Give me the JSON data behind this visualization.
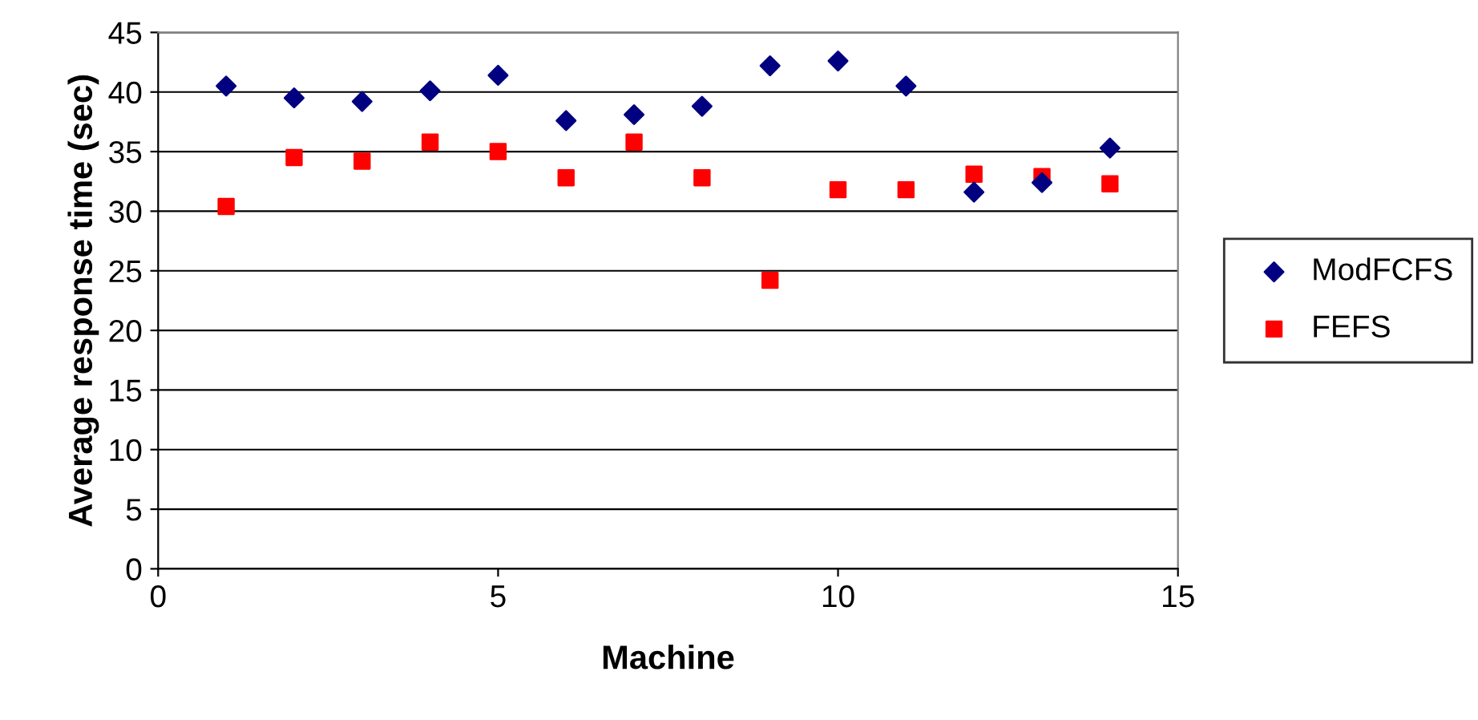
{
  "chart_data": {
    "type": "scatter",
    "xlabel": "Machine",
    "ylabel": "Average response time (sec)",
    "x": [
      1,
      2,
      3,
      4,
      5,
      6,
      7,
      8,
      9,
      10,
      11,
      12,
      13,
      14
    ],
    "series": [
      {
        "name": "ModFCFS",
        "color": "#000080",
        "marker": "diamond",
        "values": [
          40.5,
          39.5,
          39.2,
          40.1,
          41.4,
          37.6,
          38.1,
          38.8,
          42.2,
          42.6,
          40.5,
          31.6,
          32.4,
          35.3
        ]
      },
      {
        "name": "FEFS",
        "color": "#ff0000",
        "marker": "square",
        "values": [
          30.4,
          34.5,
          34.2,
          35.8,
          35.0,
          32.8,
          35.8,
          32.8,
          24.2,
          31.8,
          31.8,
          33.1,
          32.9,
          32.3
        ]
      }
    ],
    "xlim": [
      0,
      15
    ],
    "xticks": [
      0,
      5,
      10,
      15
    ],
    "ylim": [
      0,
      45
    ],
    "yticks": [
      0,
      5,
      10,
      15,
      20,
      25,
      30,
      35,
      40,
      45
    ],
    "grid": "y",
    "legend": "right"
  }
}
